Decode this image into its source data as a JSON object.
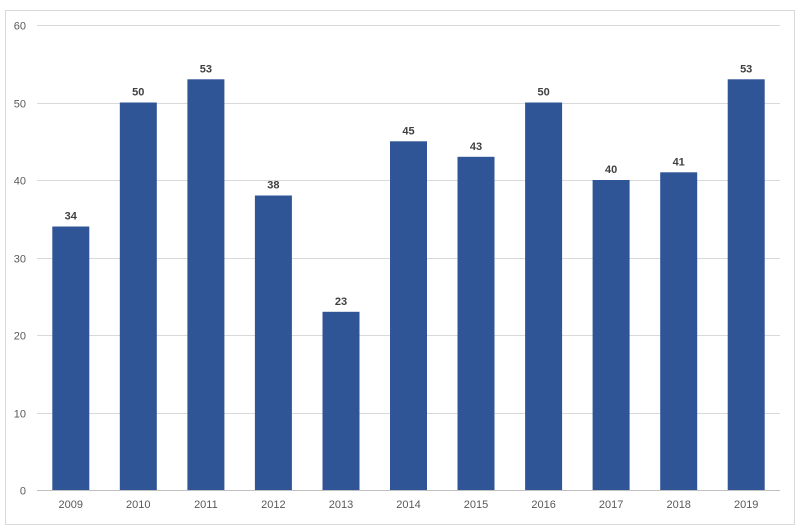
{
  "chart_data": {
    "type": "bar",
    "title": "",
    "xlabel": "",
    "ylabel": "",
    "categories": [
      "2009",
      "2010",
      "2011",
      "2012",
      "2013",
      "2014",
      "2015",
      "2016",
      "2017",
      "2018",
      "2019"
    ],
    "series": [
      {
        "values": [
          34,
          50,
          53,
          38,
          23,
          45,
          43,
          50,
          40,
          41,
          53
        ],
        "color": "#2F5597"
      }
    ],
    "ylim": [
      0,
      60
    ],
    "yticks": [
      0,
      10,
      20,
      30,
      40,
      50,
      60
    ],
    "grid": true,
    "legend": "none",
    "data_labels": true,
    "colors": {
      "gridline": "#D9D9D9",
      "axis": "#BFBFBF",
      "tick_text": "#595959",
      "label_text": "#404040",
      "frame": "#D9D9D9"
    }
  }
}
